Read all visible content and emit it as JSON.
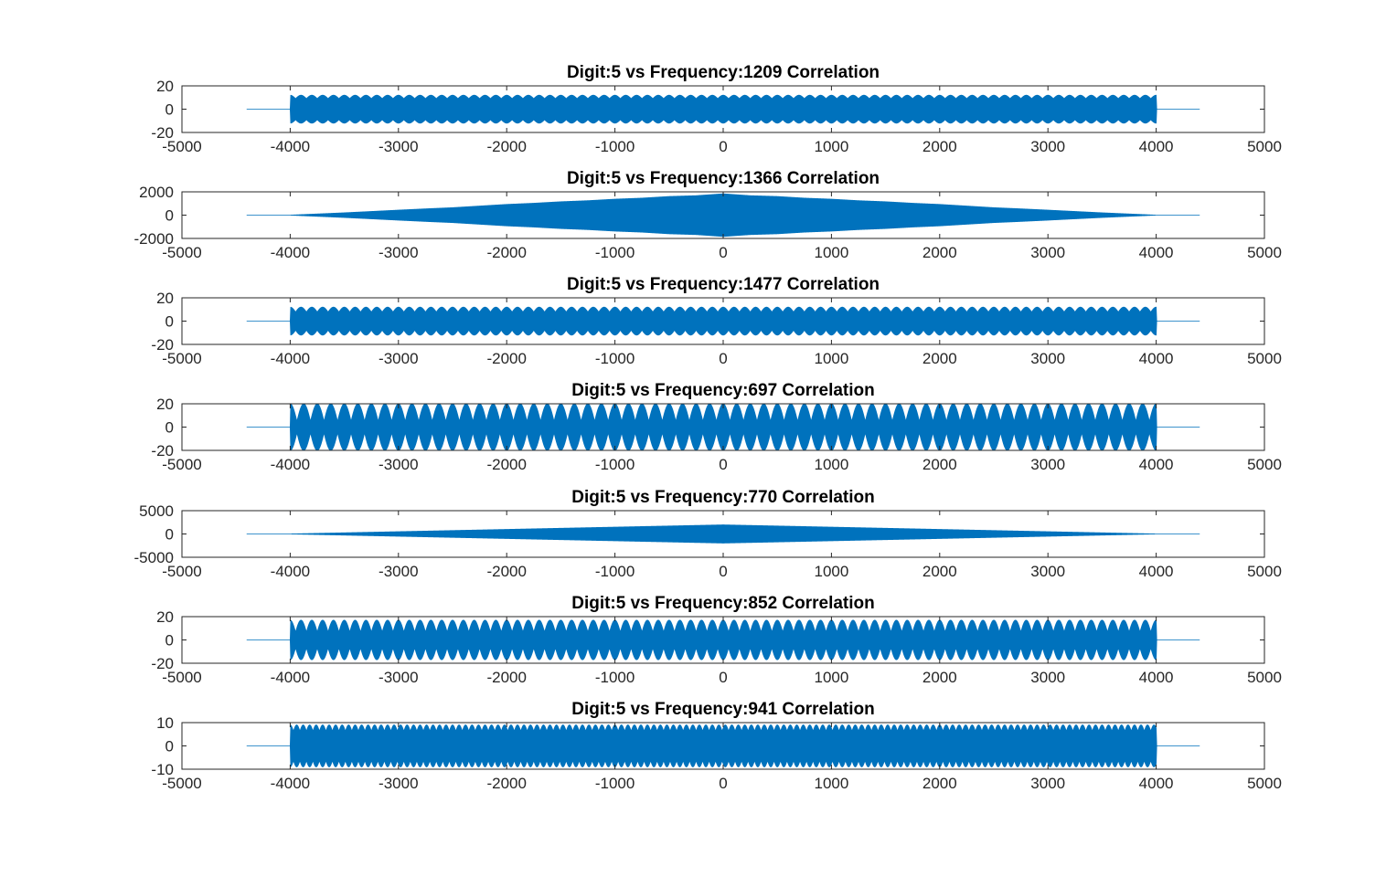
{
  "figure": {
    "background": "#ffffff",
    "axes_color": "#262626",
    "line_color": "#0072BD"
  },
  "chart_data": [
    {
      "type": "line",
      "title": "Digit:5 vs Frequency:1209 Correlation",
      "xlabel": "",
      "ylabel": "",
      "xlim": [
        -5000,
        5000
      ],
      "ylim": [
        -20,
        20
      ],
      "xticks": [
        "-5000",
        "-4000",
        "-3000",
        "-2000",
        "-1000",
        "0",
        "1000",
        "2000",
        "3000",
        "4000",
        "5000"
      ],
      "yticks": [
        "-20",
        "0",
        "20"
      ],
      "grid": false,
      "series": [
        {
          "color": "#0072BD",
          "x": [
            -4400,
            -4000,
            -4000,
            4000,
            4000,
            4400
          ],
          "envelope": [
            0,
            0,
            12,
            12,
            0,
            0
          ],
          "ripple_period": 100,
          "ripple_depth": 0.25
        }
      ]
    },
    {
      "type": "line",
      "title": "Digit:5 vs Frequency:1366 Correlation",
      "xlabel": "",
      "ylabel": "",
      "xlim": [
        -5000,
        5000
      ],
      "ylim": [
        -2000,
        2000
      ],
      "xticks": [
        "-5000",
        "-4000",
        "-3000",
        "-2000",
        "-1000",
        "0",
        "1000",
        "2000",
        "3000",
        "4000",
        "5000"
      ],
      "yticks": [
        "-2000",
        "0",
        "2000"
      ],
      "grid": false,
      "series": [
        {
          "color": "#0072BD",
          "x": [
            -4400,
            -4000,
            -3500,
            -3000,
            -2750,
            -2500,
            -2250,
            -2000,
            -1750,
            -1500,
            -1250,
            -1000,
            -750,
            -500,
            -250,
            0,
            250,
            500,
            750,
            1000,
            1250,
            1500,
            1750,
            2000,
            2250,
            2500,
            2750,
            3000,
            3500,
            4000,
            4400
          ],
          "envelope": [
            0,
            0,
            200,
            430,
            540,
            640,
            780,
            920,
            1020,
            1150,
            1240,
            1370,
            1460,
            1600,
            1670,
            1830,
            1670,
            1600,
            1460,
            1370,
            1240,
            1150,
            1020,
            920,
            780,
            640,
            540,
            430,
            200,
            0,
            0
          ],
          "ripple_period": 0,
          "ripple_depth": 0
        }
      ]
    },
    {
      "type": "line",
      "title": "Digit:5 vs Frequency:1477 Correlation",
      "xlabel": "",
      "ylabel": "",
      "xlim": [
        -5000,
        5000
      ],
      "ylim": [
        -20,
        20
      ],
      "xticks": [
        "-5000",
        "-4000",
        "-3000",
        "-2000",
        "-1000",
        "0",
        "1000",
        "2000",
        "3000",
        "4000",
        "5000"
      ],
      "yticks": [
        "-20",
        "0",
        "20"
      ],
      "grid": false,
      "series": [
        {
          "color": "#0072BD",
          "x": [
            -4400,
            -4000,
            -4000,
            4000,
            4000,
            4400
          ],
          "envelope": [
            0,
            0,
            12,
            12,
            0,
            0
          ],
          "ripple_period": 100,
          "ripple_depth": 0.35
        }
      ]
    },
    {
      "type": "line",
      "title": "Digit:5 vs Frequency:697 Correlation",
      "xlabel": "",
      "ylabel": "",
      "xlim": [
        -5000,
        5000
      ],
      "ylim": [
        -20,
        20
      ],
      "xticks": [
        "-5000",
        "-4000",
        "-3000",
        "-2000",
        "-1000",
        "0",
        "1000",
        "2000",
        "3000",
        "4000",
        "5000"
      ],
      "yticks": [
        "-20",
        "0",
        "20"
      ],
      "grid": false,
      "series": [
        {
          "color": "#0072BD",
          "x": [
            -4400,
            -4000,
            -4000,
            4000,
            4000,
            4400
          ],
          "envelope": [
            0,
            0,
            20,
            20,
            0,
            0
          ],
          "ripple_period": 125,
          "ripple_depth": 0.75
        }
      ]
    },
    {
      "type": "line",
      "title": "Digit:5 vs Frequency:770 Correlation",
      "xlabel": "",
      "ylabel": "",
      "xlim": [
        -5000,
        5000
      ],
      "ylim": [
        -5000,
        5000
      ],
      "xticks": [
        "-5000",
        "-4000",
        "-3000",
        "-2000",
        "-1000",
        "0",
        "1000",
        "2000",
        "3000",
        "4000",
        "5000"
      ],
      "yticks": [
        "-5000",
        "0",
        "5000"
      ],
      "grid": false,
      "series": [
        {
          "color": "#0072BD",
          "x": [
            -4400,
            -4000,
            0,
            4000,
            4400
          ],
          "envelope": [
            0,
            0,
            1950,
            0,
            0
          ],
          "ripple_period": 0,
          "ripple_depth": 0
        }
      ]
    },
    {
      "type": "line",
      "title": "Digit:5 vs Frequency:852 Correlation",
      "xlabel": "",
      "ylabel": "",
      "xlim": [
        -5000,
        5000
      ],
      "ylim": [
        -20,
        20
      ],
      "xticks": [
        "-5000",
        "-4000",
        "-3000",
        "-2000",
        "-1000",
        "0",
        "1000",
        "2000",
        "3000",
        "4000",
        "5000"
      ],
      "yticks": [
        "-20",
        "0",
        "20"
      ],
      "grid": false,
      "series": [
        {
          "color": "#0072BD",
          "x": [
            -4400,
            -4000,
            -4000,
            4000,
            4000,
            4400
          ],
          "envelope": [
            0,
            0,
            17,
            17,
            0,
            0
          ],
          "ripple_period": 100,
          "ripple_depth": 0.6
        }
      ]
    },
    {
      "type": "line",
      "title": "Digit:5 vs Frequency:941 Correlation",
      "xlabel": "",
      "ylabel": "",
      "xlim": [
        -5000,
        5000
      ],
      "ylim": [
        -10,
        10
      ],
      "xticks": [
        "-5000",
        "-4000",
        "-3000",
        "-2000",
        "-1000",
        "0",
        "1000",
        "2000",
        "3000",
        "4000",
        "5000"
      ],
      "yticks": [
        "-10",
        "0",
        "10"
      ],
      "grid": false,
      "series": [
        {
          "color": "#0072BD",
          "x": [
            -4400,
            -4000,
            -4000,
            4000,
            4000,
            4400
          ],
          "envelope": [
            0,
            0,
            9,
            9,
            0,
            0
          ],
          "ripple_period": 60,
          "ripple_depth": 0.3
        }
      ]
    }
  ]
}
